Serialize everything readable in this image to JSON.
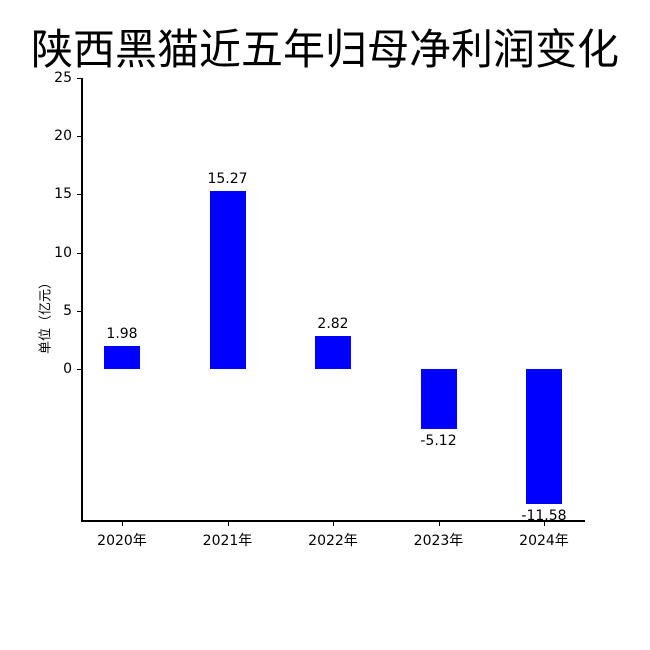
{
  "chart_data": {
    "type": "bar",
    "title": "陕西黑猫近五年归母净利润变化",
    "xlabel": "",
    "ylabel": "单位（亿元）",
    "categories": [
      "2020年",
      "2021年",
      "2022年",
      "2023年",
      "2024年"
    ],
    "values": [
      1.98,
      15.27,
      2.82,
      -5.12,
      -11.58
    ],
    "value_labels": [
      "1.98",
      "15.27",
      "2.82",
      "-5.12",
      "-11.58"
    ],
    "yticks": [
      "0",
      "5",
      "10",
      "15",
      "20",
      "25"
    ],
    "ylim": [
      -13,
      25
    ],
    "bar_color": "#0000ff",
    "grid": false,
    "legend": null
  }
}
